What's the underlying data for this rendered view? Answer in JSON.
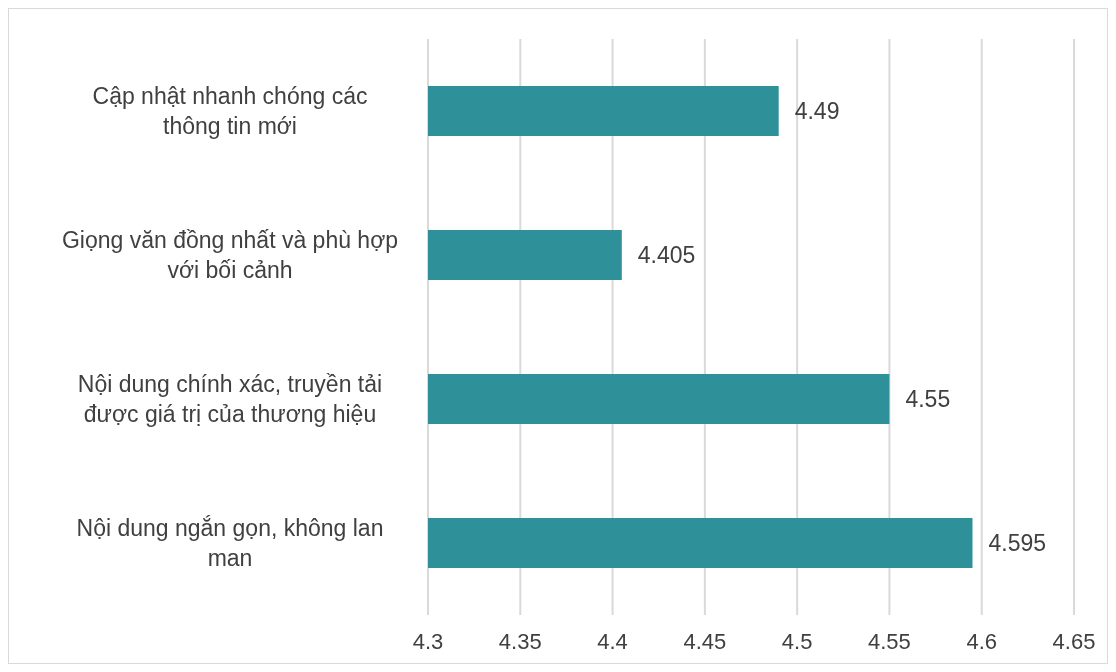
{
  "chart_data": {
    "type": "bar",
    "orientation": "horizontal",
    "categories": [
      "Cập nhật nhanh  chóng các thông tin mới",
      "Giọng văn đồng nhất và phù hợp với bối cảnh",
      "Nội dung chính xác, truyền tải được giá trị của thương hiệu",
      "Nội dung ngắn gọn, không lan man"
    ],
    "values": [
      4.49,
      4.405,
      4.55,
      4.595
    ],
    "color": "#2e9199",
    "xlim": [
      4.3,
      4.65
    ],
    "xticks": [
      4.3,
      4.35,
      4.4,
      4.45,
      4.5,
      4.55,
      4.6,
      4.65
    ],
    "grid": "x",
    "data_labels": true,
    "legend": false
  }
}
